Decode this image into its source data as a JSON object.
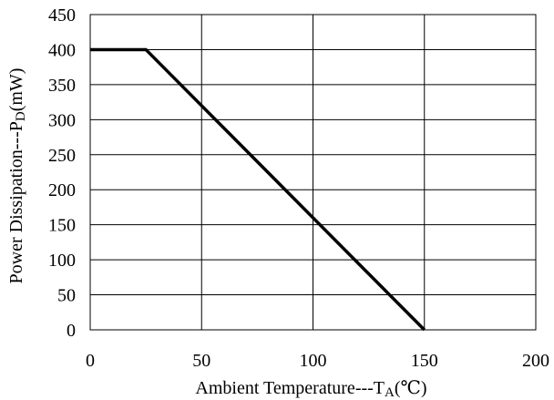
{
  "chart_data": {
    "type": "line",
    "xlabel": {
      "main": "Ambient Temperature---T",
      "sub": "A",
      "unit": "(℃)"
    },
    "ylabel": {
      "main": "Power Dissipation---P",
      "sub": "D",
      "unit": "(mW)"
    },
    "xlim": [
      0,
      200
    ],
    "ylim": [
      0,
      450
    ],
    "x_ticks": [
      0,
      50,
      100,
      150,
      200
    ],
    "y_ticks": [
      0,
      50,
      100,
      150,
      200,
      250,
      300,
      350,
      400,
      450
    ],
    "grid": true,
    "series": [
      {
        "x": [
          0,
          25,
          150
        ],
        "y": [
          400,
          400,
          0
        ],
        "color": "#000000"
      }
    ]
  }
}
